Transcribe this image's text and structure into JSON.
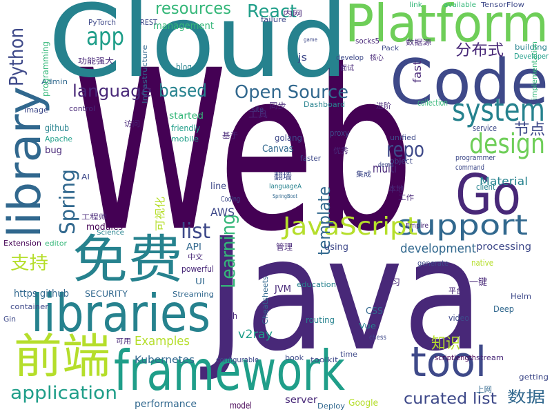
{
  "words": [
    "Web",
    "Java",
    "Cloud",
    "Platform",
    "Code",
    "library",
    "免费",
    "libraries",
    "前端",
    "framework",
    "tool",
    "Go",
    "system",
    "support",
    "design",
    "JavaScript",
    "application",
    "curated list",
    "数据",
    "知识",
    "Examples",
    "Kubernetes",
    "v2ray",
    "app",
    "React",
    "resources",
    "management",
    "blog",
    "Python",
    "Spring",
    "Learning",
    "template",
    "language",
    "based",
    "Open Source",
    "repo",
    "分布式",
    "节点",
    "list",
    "development",
    "processing",
    "支持",
    "multi",
    "Material",
    "Canvas",
    "golang",
    "AWS",
    "modules",
    "SECURITY",
    "https github",
    "container",
    "Extension",
    "performance",
    "model",
    "server",
    "Google",
    "Deploy",
    "API",
    "UI",
    "Streaming",
    "JVM",
    "using",
    "education",
    "routing",
    "CSS",
    "Vue",
    "Deep",
    "toolkit",
    "configurable",
    "book",
    "time",
    "stream",
    "scriptlength",
    "Helm",
    "native",
    "Cheatsheets",
    "Coding",
    "line",
    "fast",
    "collection",
    "service",
    "command",
    "client",
    "unified",
    "object",
    "demo",
    "faster",
    "proxy",
    "site",
    "control",
    "Image",
    "Admin",
    "started",
    "friendly",
    "mobile",
    "github",
    "Apache",
    "bug",
    "Dashboard",
    "Infrastructure",
    "REST",
    "PyTorch",
    "link",
    "available",
    "TensorFlow",
    "building",
    "Developer",
    "implementation",
    "socks5",
    "Pack",
    "数据源",
    "js",
    "failure",
    "内网",
    "工具",
    "同步",
    "功能强大",
    "可视化",
    "工程师",
    "AI",
    "本地",
    "工作",
    "翻墙",
    "集成",
    "学习",
    "平台",
    "一键",
    "管理",
    "中文",
    "powerful",
    "Gin",
    "chess",
    "high",
    "video",
    "上网",
    "getting",
    "SpringBoot",
    "languageA",
    "Science",
    "editor",
    "programming",
    "programmer",
    "generate",
    "Empire",
    "面试",
    "核心",
    "develop",
    "game",
    "基于",
    "优秀",
    "进阶",
    "访问",
    "可用"
  ]
}
